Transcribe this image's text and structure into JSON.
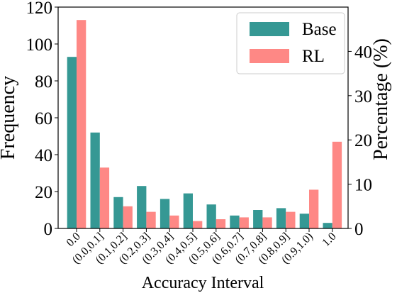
{
  "chart_data": {
    "type": "bar",
    "xlabel": "Accuracy Interval",
    "ylabel": "Frequency",
    "y2label": "Percentage (%)",
    "categories": [
      "0.0",
      "(0.0,0.1]",
      "(0.1,0.2]",
      "(0.2,0.3]",
      "(0.3,0.4]",
      "(0.4,0.5]",
      "(0.5,0.6]",
      "(0.6,0.7]",
      "(0.7,0.8]",
      "(0.8,0.9]",
      "(0.9,1.0)",
      "1.0"
    ],
    "series": [
      {
        "name": "Base",
        "color": "#359894",
        "values": [
          93,
          52,
          17,
          23,
          16,
          19,
          13,
          7,
          10,
          11,
          8,
          3
        ]
      },
      {
        "name": "RL",
        "color": "#fe8885",
        "values": [
          113,
          33,
          12,
          9,
          7,
          4,
          5,
          6,
          6,
          9,
          21,
          47
        ]
      }
    ],
    "ylim": [
      0,
      120
    ],
    "yticks": [
      0,
      20,
      40,
      60,
      80,
      100,
      120
    ],
    "y2ticks": [
      0,
      10,
      20,
      30,
      40
    ],
    "y2_per_y": 0.4167,
    "legend": "top-right",
    "grid": false
  }
}
